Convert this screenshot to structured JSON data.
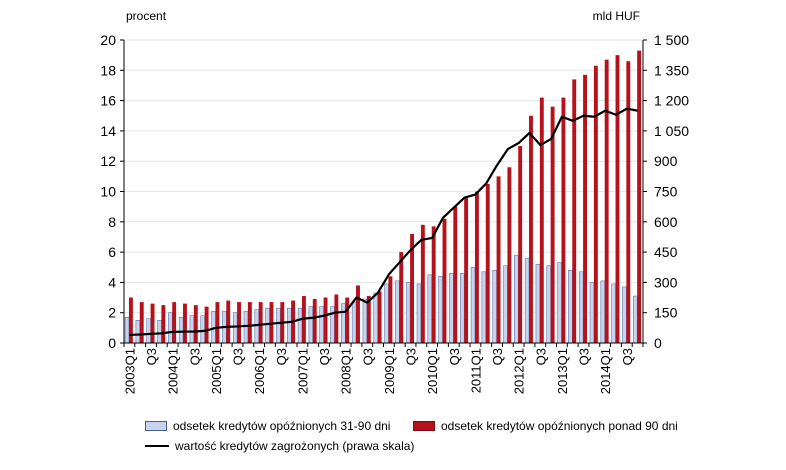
{
  "chart_data": {
    "type": "bar",
    "left_axis_unit": "procent",
    "right_axis_unit": "mld HUF",
    "ylim_left": [
      0,
      20
    ],
    "ylim_right": [
      0,
      1500
    ],
    "yticks_left": [
      "0",
      "2",
      "4",
      "6",
      "8",
      "10",
      "12",
      "14",
      "16",
      "18",
      "20"
    ],
    "yticks_right": [
      "0",
      "150",
      "300",
      "450",
      "600",
      "750",
      "900",
      "1 050",
      "1 200",
      "1 350",
      "1 500"
    ],
    "categories": [
      "2003Q1",
      "Q2",
      "Q3",
      "Q4",
      "2004Q1",
      "Q2",
      "Q3",
      "Q4",
      "2005Q1",
      "Q2",
      "Q3",
      "Q4",
      "2006Q1",
      "Q2",
      "Q3",
      "Q4",
      "2007Q1",
      "Q2",
      "Q3",
      "Q4",
      "2008Q1",
      "Q2",
      "Q3",
      "Q4",
      "2009Q1",
      "Q2",
      "Q3",
      "Q4",
      "2010Q1",
      "Q2",
      "Q3",
      "Q4",
      "2011Q1",
      "Q2",
      "Q3",
      "Q4",
      "2012Q1",
      "Q2",
      "Q3",
      "Q4",
      "2013Q1",
      "Q2",
      "Q3",
      "Q4",
      "2014Q1",
      "Q2",
      "Q3",
      "Q4"
    ],
    "x_tick_labels": [
      "2003Q1",
      "",
      "Q3",
      "",
      "2004Q1",
      "",
      "Q3",
      "",
      "2005Q1",
      "",
      "Q3",
      "",
      "2006Q1",
      "",
      "Q3",
      "",
      "2007Q1",
      "",
      "Q3",
      "",
      "2008Q1",
      "",
      "Q3",
      "",
      "2009Q1",
      "",
      "Q3",
      "",
      "2010Q1",
      "",
      "Q3",
      "",
      "2011Q1",
      "",
      "Q3",
      "",
      "2012Q1",
      "",
      "Q3",
      "",
      "2013Q1",
      "",
      "Q3",
      "",
      "2014Q1",
      "",
      "Q3",
      ""
    ],
    "series": [
      {
        "name": "odsetek kredytów opóźnionych 31-90 dni",
        "axis": "left",
        "color": "#c6d4ef",
        "values": [
          1.7,
          1.5,
          1.6,
          1.5,
          2.0,
          1.7,
          1.8,
          1.8,
          2.1,
          2.1,
          2.0,
          2.1,
          2.2,
          2.3,
          2.3,
          2.3,
          2.3,
          2.4,
          2.4,
          2.4,
          2.6,
          2.7,
          2.9,
          3.3,
          3.9,
          4.1,
          4.0,
          3.9,
          4.5,
          4.4,
          4.6,
          4.6,
          5.0,
          4.7,
          4.8,
          5.1,
          5.8,
          5.6,
          5.2,
          5.1,
          5.3,
          4.8,
          4.7,
          4.0,
          4.1,
          3.9,
          3.7,
          3.1
        ]
      },
      {
        "name": "odsetek kredytów opóźnionych ponad 90 dni",
        "axis": "left",
        "color": "#b5121b",
        "values": [
          3.0,
          2.7,
          2.6,
          2.5,
          2.7,
          2.6,
          2.5,
          2.4,
          2.7,
          2.8,
          2.7,
          2.7,
          2.7,
          2.7,
          2.7,
          2.8,
          3.1,
          2.9,
          3.0,
          3.2,
          3.0,
          3.8,
          3.1,
          3.4,
          4.4,
          6.0,
          7.2,
          7.8,
          7.7,
          8.2,
          9.0,
          9.6,
          10.0,
          10.5,
          11.0,
          11.6,
          13.0,
          15.0,
          16.2,
          15.6,
          16.2,
          17.4,
          17.7,
          18.3,
          18.7,
          19.0,
          18.6,
          19.3
        ]
      },
      {
        "name": "wartość kredytów zagrożonych (prawa skala)",
        "axis": "right",
        "type": "line",
        "color": "#000000",
        "values": [
          40,
          42,
          45,
          48,
          55,
          56,
          57,
          60,
          75,
          80,
          82,
          85,
          90,
          95,
          100,
          105,
          120,
          125,
          135,
          150,
          155,
          225,
          200,
          250,
          340,
          400,
          460,
          510,
          520,
          620,
          670,
          720,
          735,
          790,
          880,
          960,
          990,
          1040,
          980,
          1010,
          1120,
          1100,
          1125,
          1120,
          1150,
          1130,
          1160,
          1150
        ]
      }
    ],
    "legend": {
      "placement": "bottom",
      "items": [
        "odsetek kredytów opóźnionych 31-90 dni",
        "odsetek kredytów opóźnionych ponad 90 dni",
        "wartość kredytów zagrożonych (prawa skala)"
      ]
    }
  }
}
